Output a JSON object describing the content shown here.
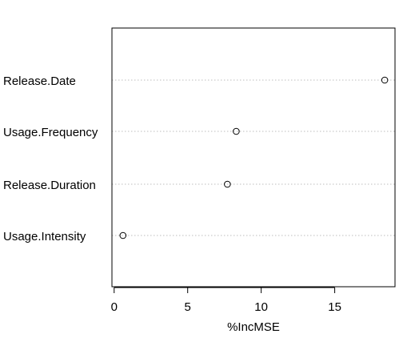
{
  "chart_data": {
    "type": "scatter",
    "title": "",
    "xlabel": "%IncMSE",
    "ylabel": "",
    "categories": [
      "Release.Date",
      "Usage.Frequency",
      "Release.Duration",
      "Usage.Intensity"
    ],
    "values": [
      18.4,
      8.3,
      7.7,
      0.6
    ],
    "xlim": [
      -0.15,
      19.1
    ],
    "xticks": [
      0,
      5,
      10,
      15
    ],
    "grid": "dotted horizontal guide lines",
    "marker": "open circle",
    "colors": {
      "points": "#000000",
      "guides": "#bebebe",
      "frame": "#000000"
    }
  }
}
